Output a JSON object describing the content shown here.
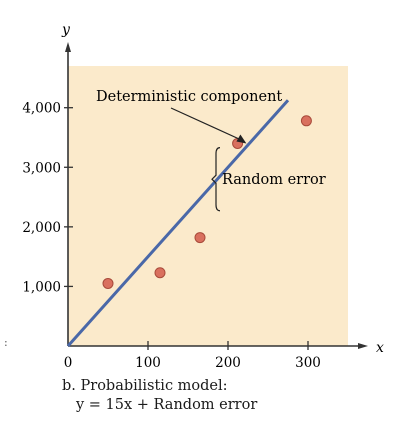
{
  "chart_data": {
    "type": "scatter",
    "x_axis_label": "x",
    "y_axis_label": "y",
    "x_ticks": [
      0,
      100,
      200,
      300
    ],
    "x_tick_labels": [
      "0",
      "100",
      "200",
      "300"
    ],
    "y_ticks": [
      1000,
      2000,
      3000,
      4000
    ],
    "y_tick_labels": [
      "1,000",
      "2,000",
      "3,000",
      "4,000"
    ],
    "xlim": [
      0,
      350
    ],
    "ylim": [
      0,
      4700
    ],
    "points": [
      {
        "x": 50,
        "y": 1050
      },
      {
        "x": 115,
        "y": 1230
      },
      {
        "x": 165,
        "y": 1820
      },
      {
        "x": 212,
        "y": 3400
      },
      {
        "x": 298,
        "y": 3780
      }
    ],
    "line": {
      "slope": 15,
      "intercept": 0,
      "x_start": 0,
      "x_end": 275
    },
    "annotations": {
      "deterministic": "Deterministic component",
      "random_error": "Random error"
    },
    "colors": {
      "plot_background": "#fbeacb",
      "line": "#4a68a8",
      "point_fill": "#d9705e",
      "point_edge": "#a84a3a",
      "axis": "#333333"
    }
  },
  "caption": {
    "line1": "b. Probabilistic model:",
    "line2": "y = 15x + Random error"
  },
  "stray_mark": ":"
}
